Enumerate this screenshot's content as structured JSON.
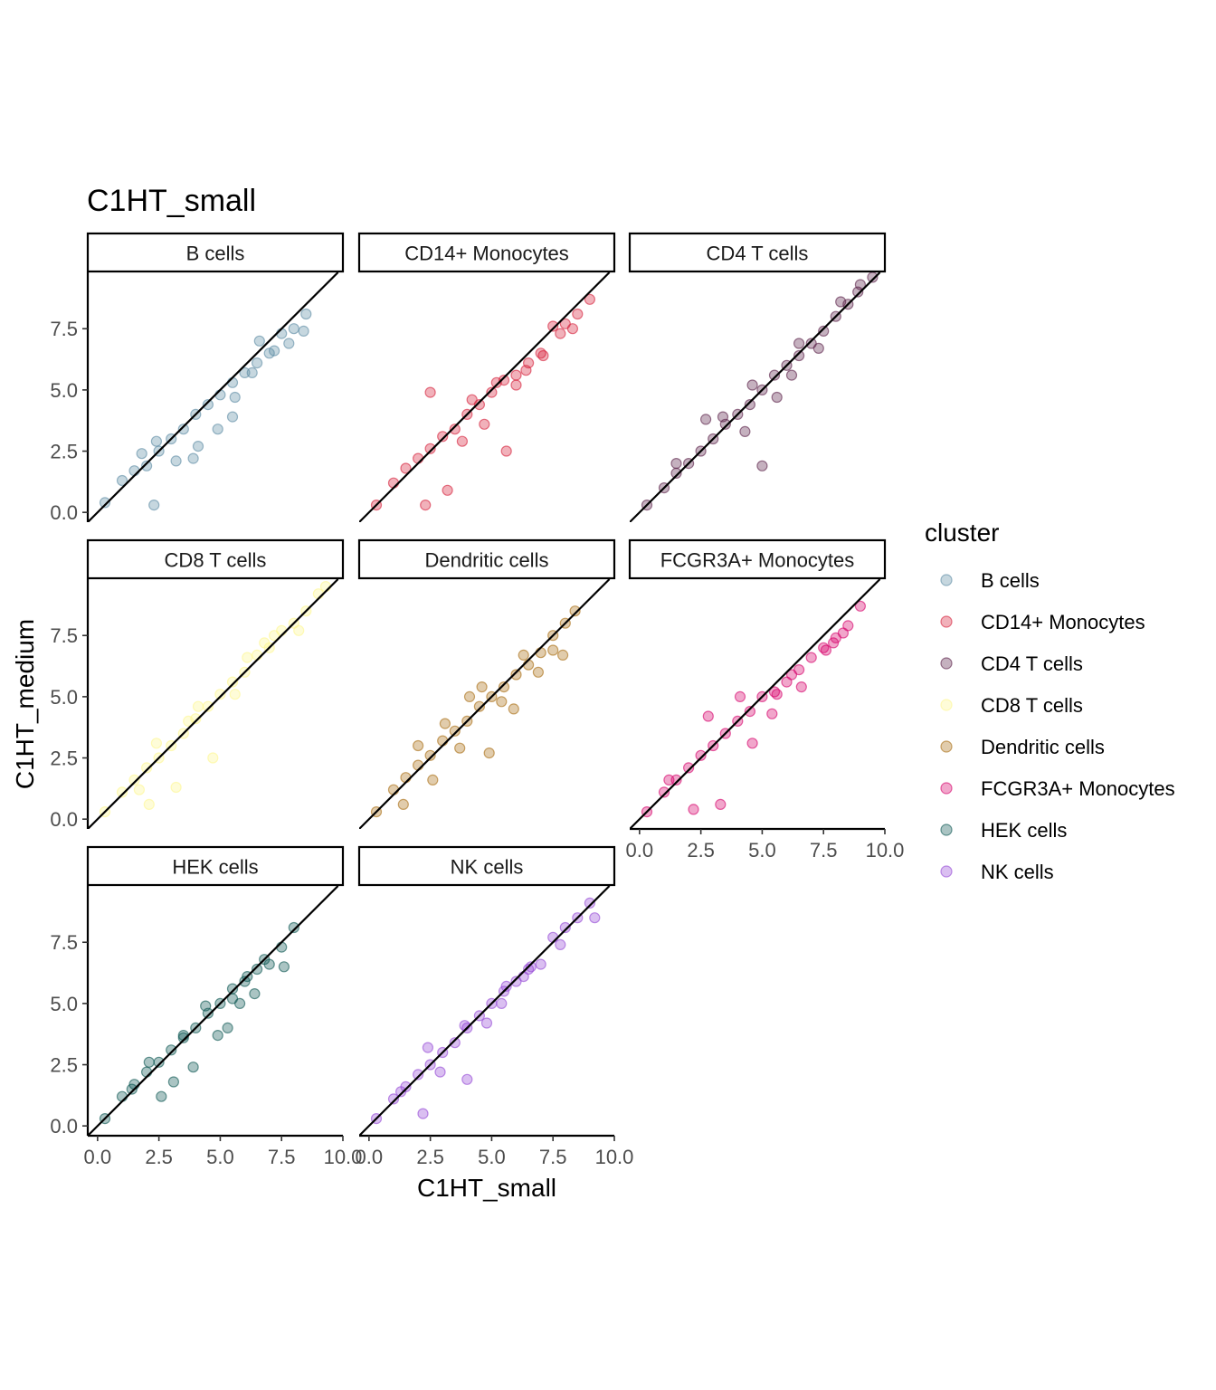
{
  "chart_data": {
    "type": "scatter",
    "title": "C1HT_small",
    "xlabel": "C1HT_small",
    "ylabel": "C1HT_medium",
    "xlim": [
      -0.4,
      10.0
    ],
    "ylim": [
      -0.4,
      9.8
    ],
    "x_ticks": [
      "0.0",
      "2.5",
      "5.0",
      "7.5",
      "10.0"
    ],
    "y_ticks": [
      "0.0",
      "2.5",
      "5.0",
      "7.5"
    ],
    "reference_line": "y = x",
    "grid": false,
    "legend": {
      "title": "cluster",
      "placement": "right"
    },
    "panels": [
      {
        "name": "B cells",
        "color": "#5b8ba3",
        "points": [
          [
            0.3,
            0.4
          ],
          [
            1.0,
            1.3
          ],
          [
            1.5,
            1.7
          ],
          [
            2.0,
            1.9
          ],
          [
            2.5,
            2.5
          ],
          [
            3.0,
            3.0
          ],
          [
            3.5,
            3.4
          ],
          [
            4.0,
            4.0
          ],
          [
            4.5,
            4.4
          ],
          [
            5.0,
            4.8
          ],
          [
            5.5,
            5.3
          ],
          [
            6.0,
            5.7
          ],
          [
            6.5,
            6.1
          ],
          [
            7.0,
            6.5
          ],
          [
            7.5,
            7.3
          ],
          [
            8.0,
            7.5
          ],
          [
            8.5,
            8.1
          ],
          [
            6.6,
            7.0
          ],
          [
            5.5,
            3.9
          ],
          [
            3.9,
            2.2
          ],
          [
            4.9,
            3.4
          ],
          [
            2.3,
            0.3
          ],
          [
            8.4,
            7.4
          ],
          [
            7.8,
            6.9
          ],
          [
            7.2,
            6.6
          ],
          [
            6.3,
            5.7
          ],
          [
            5.6,
            4.7
          ],
          [
            4.1,
            2.7
          ],
          [
            3.2,
            2.1
          ],
          [
            2.4,
            2.9
          ],
          [
            1.8,
            2.4
          ]
        ]
      },
      {
        "name": "CD14+ Monocytes",
        "color": "#d61f3a",
        "points": [
          [
            0.3,
            0.3
          ],
          [
            1.0,
            1.2
          ],
          [
            1.5,
            1.8
          ],
          [
            2.0,
            2.2
          ],
          [
            2.5,
            2.6
          ],
          [
            3.0,
            3.1
          ],
          [
            3.5,
            3.4
          ],
          [
            4.0,
            4.0
          ],
          [
            4.5,
            4.4
          ],
          [
            5.0,
            4.9
          ],
          [
            5.5,
            5.4
          ],
          [
            6.0,
            5.6
          ],
          [
            6.5,
            6.1
          ],
          [
            7.0,
            6.5
          ],
          [
            7.5,
            7.6
          ],
          [
            8.0,
            7.7
          ],
          [
            8.3,
            7.5
          ],
          [
            9.0,
            8.7
          ],
          [
            8.5,
            8.1
          ],
          [
            7.8,
            7.3
          ],
          [
            6.4,
            5.8
          ],
          [
            5.6,
            2.5
          ],
          [
            3.2,
            0.9
          ],
          [
            2.3,
            0.3
          ],
          [
            7.1,
            6.4
          ],
          [
            6.0,
            5.2
          ],
          [
            4.2,
            4.6
          ],
          [
            2.5,
            4.9
          ],
          [
            4.7,
            3.6
          ],
          [
            3.8,
            2.9
          ],
          [
            5.2,
            5.3
          ]
        ]
      },
      {
        "name": "CD4 T cells",
        "color": "#5a1f47",
        "points": [
          [
            0.3,
            0.3
          ],
          [
            1.0,
            1.0
          ],
          [
            1.5,
            1.6
          ],
          [
            2.0,
            2.0
          ],
          [
            2.5,
            2.5
          ],
          [
            3.0,
            3.0
          ],
          [
            3.5,
            3.6
          ],
          [
            4.0,
            4.0
          ],
          [
            4.5,
            4.4
          ],
          [
            5.0,
            5.0
          ],
          [
            5.5,
            5.6
          ],
          [
            6.0,
            6.0
          ],
          [
            6.5,
            6.4
          ],
          [
            7.0,
            6.9
          ],
          [
            7.5,
            7.4
          ],
          [
            8.0,
            8.0
          ],
          [
            8.5,
            8.5
          ],
          [
            9.0,
            9.3
          ],
          [
            9.5,
            9.6
          ],
          [
            5.0,
            1.9
          ],
          [
            4.3,
            3.3
          ],
          [
            6.2,
            5.6
          ],
          [
            7.3,
            6.7
          ],
          [
            8.2,
            8.6
          ],
          [
            3.4,
            3.9
          ],
          [
            2.7,
            3.8
          ],
          [
            1.5,
            2.0
          ],
          [
            5.6,
            4.7
          ],
          [
            6.5,
            6.9
          ],
          [
            8.9,
            9.0
          ],
          [
            4.6,
            5.2
          ]
        ]
      },
      {
        "name": "CD8 T cells",
        "color": "#fdf690",
        "points": [
          [
            0.3,
            0.3
          ],
          [
            1.0,
            1.1
          ],
          [
            1.5,
            1.6
          ],
          [
            2.0,
            2.1
          ],
          [
            2.5,
            2.5
          ],
          [
            3.0,
            3.0
          ],
          [
            3.5,
            3.5
          ],
          [
            4.0,
            4.1
          ],
          [
            4.5,
            4.6
          ],
          [
            5.0,
            5.1
          ],
          [
            5.5,
            5.6
          ],
          [
            6.0,
            6.0
          ],
          [
            6.5,
            6.7
          ],
          [
            7.0,
            7.0
          ],
          [
            7.5,
            7.7
          ],
          [
            8.0,
            8.0
          ],
          [
            8.5,
            8.5
          ],
          [
            9.0,
            9.2
          ],
          [
            9.3,
            9.5
          ],
          [
            4.7,
            2.5
          ],
          [
            3.2,
            1.3
          ],
          [
            5.6,
            5.1
          ],
          [
            7.2,
            7.5
          ],
          [
            8.2,
            7.7
          ],
          [
            6.1,
            6.6
          ],
          [
            2.4,
            3.1
          ],
          [
            4.1,
            4.6
          ],
          [
            6.8,
            7.2
          ],
          [
            3.7,
            4.0
          ],
          [
            1.7,
            1.2
          ],
          [
            2.1,
            0.6
          ]
        ]
      },
      {
        "name": "Dendritic cells",
        "color": "#a96c10",
        "points": [
          [
            0.3,
            0.3
          ],
          [
            1.0,
            1.2
          ],
          [
            1.5,
            1.7
          ],
          [
            2.0,
            2.2
          ],
          [
            2.5,
            2.6
          ],
          [
            3.0,
            3.2
          ],
          [
            3.5,
            3.6
          ],
          [
            4.0,
            4.0
          ],
          [
            4.5,
            4.6
          ],
          [
            5.0,
            5.0
          ],
          [
            5.5,
            5.4
          ],
          [
            6.0,
            5.9
          ],
          [
            6.5,
            6.3
          ],
          [
            7.0,
            6.8
          ],
          [
            7.5,
            7.5
          ],
          [
            8.0,
            8.0
          ],
          [
            8.4,
            8.5
          ],
          [
            7.9,
            6.7
          ],
          [
            6.9,
            6.0
          ],
          [
            4.9,
            2.7
          ],
          [
            5.9,
            4.5
          ],
          [
            3.1,
            3.9
          ],
          [
            2.0,
            3.0
          ],
          [
            4.1,
            5.0
          ],
          [
            4.6,
            5.4
          ],
          [
            6.3,
            6.7
          ],
          [
            7.5,
            6.9
          ],
          [
            5.4,
            4.8
          ],
          [
            3.7,
            2.9
          ],
          [
            2.6,
            1.6
          ],
          [
            1.4,
            0.6
          ]
        ]
      },
      {
        "name": "FCGR3A+ Monocytes",
        "color": "#d6006a",
        "points": [
          [
            0.3,
            0.3
          ],
          [
            1.0,
            1.1
          ],
          [
            1.5,
            1.6
          ],
          [
            2.0,
            2.1
          ],
          [
            2.5,
            2.6
          ],
          [
            3.0,
            3.0
          ],
          [
            3.5,
            3.5
          ],
          [
            4.0,
            4.0
          ],
          [
            4.5,
            4.4
          ],
          [
            5.0,
            5.0
          ],
          [
            5.5,
            5.2
          ],
          [
            6.0,
            5.6
          ],
          [
            6.5,
            6.1
          ],
          [
            7.0,
            6.6
          ],
          [
            7.5,
            7.0
          ],
          [
            8.0,
            7.4
          ],
          [
            8.5,
            7.9
          ],
          [
            9.0,
            8.7
          ],
          [
            8.3,
            7.6
          ],
          [
            7.6,
            6.9
          ],
          [
            6.6,
            5.4
          ],
          [
            5.4,
            4.3
          ],
          [
            4.6,
            3.1
          ],
          [
            3.3,
            0.6
          ],
          [
            2.2,
            0.4
          ],
          [
            6.2,
            5.9
          ],
          [
            5.6,
            5.1
          ],
          [
            4.1,
            5.0
          ],
          [
            2.8,
            4.2
          ],
          [
            1.2,
            1.6
          ],
          [
            7.9,
            7.2
          ]
        ]
      },
      {
        "name": "HEK cells",
        "color": "#0c5752",
        "points": [
          [
            0.3,
            0.3
          ],
          [
            1.0,
            1.2
          ],
          [
            1.5,
            1.7
          ],
          [
            2.0,
            2.2
          ],
          [
            2.5,
            2.6
          ],
          [
            3.0,
            3.1
          ],
          [
            3.5,
            3.6
          ],
          [
            4.0,
            4.0
          ],
          [
            4.5,
            4.6
          ],
          [
            5.0,
            5.0
          ],
          [
            5.5,
            5.6
          ],
          [
            6.0,
            5.9
          ],
          [
            6.5,
            6.4
          ],
          [
            7.0,
            6.6
          ],
          [
            7.5,
            7.3
          ],
          [
            8.0,
            8.1
          ],
          [
            7.6,
            6.5
          ],
          [
            6.8,
            6.8
          ],
          [
            6.1,
            6.1
          ],
          [
            5.3,
            4.0
          ],
          [
            4.9,
            3.7
          ],
          [
            3.9,
            2.4
          ],
          [
            3.1,
            1.8
          ],
          [
            2.6,
            1.2
          ],
          [
            5.8,
            5.0
          ],
          [
            5.5,
            5.2
          ],
          [
            6.4,
            5.4
          ],
          [
            4.4,
            4.9
          ],
          [
            3.5,
            3.7
          ],
          [
            2.1,
            2.6
          ],
          [
            1.4,
            1.5
          ]
        ]
      },
      {
        "name": "NK cells",
        "color": "#9448d6",
        "points": [
          [
            0.3,
            0.3
          ],
          [
            1.0,
            1.1
          ],
          [
            1.5,
            1.6
          ],
          [
            2.0,
            2.1
          ],
          [
            2.5,
            2.5
          ],
          [
            3.0,
            3.0
          ],
          [
            3.5,
            3.4
          ],
          [
            4.0,
            4.0
          ],
          [
            4.5,
            4.5
          ],
          [
            5.0,
            5.0
          ],
          [
            5.5,
            5.5
          ],
          [
            6.0,
            5.9
          ],
          [
            6.5,
            6.4
          ],
          [
            7.0,
            6.6
          ],
          [
            7.5,
            7.7
          ],
          [
            8.0,
            8.1
          ],
          [
            8.5,
            8.5
          ],
          [
            9.0,
            9.1
          ],
          [
            9.2,
            8.5
          ],
          [
            7.8,
            7.4
          ],
          [
            6.6,
            6.5
          ],
          [
            5.6,
            5.7
          ],
          [
            4.8,
            4.2
          ],
          [
            4.0,
            1.9
          ],
          [
            2.9,
            2.2
          ],
          [
            2.2,
            0.5
          ],
          [
            6.3,
            6.1
          ],
          [
            5.4,
            5.0
          ],
          [
            3.9,
            4.1
          ],
          [
            2.4,
            3.2
          ],
          [
            1.3,
            1.4
          ]
        ]
      }
    ]
  }
}
